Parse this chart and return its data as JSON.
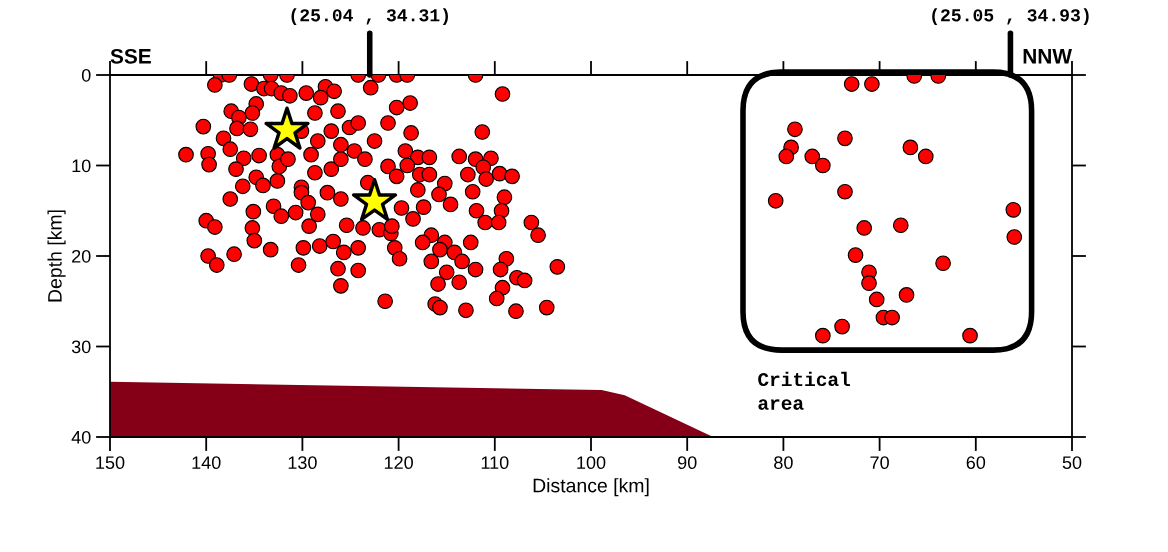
{
  "chart_data": {
    "type": "scatter",
    "xlabel": "Distance [km]",
    "ylabel": "Depth [km]",
    "xlim": [
      150,
      50
    ],
    "xticks": [
      150,
      140,
      130,
      120,
      110,
      100,
      90,
      80,
      70,
      60,
      50
    ],
    "ylim": [
      40,
      0
    ],
    "yticks": [
      0,
      10,
      20,
      30,
      40
    ],
    "grid": false,
    "tick_labels": "xy",
    "annotations": [
      "(25.04 , 34.31)",
      "(25.05 , 34.93)",
      "SSE",
      "NNW",
      "Critical area"
    ],
    "series": [
      {
        "type": "area",
        "color": "#850016",
        "x": [
          150,
          150,
          98.9,
          96.5,
          87.3
        ],
        "values": [
          40,
          33.9,
          34.8,
          35.4,
          40
        ]
      },
      {
        "color": "#ff0000",
        "marker": "circle",
        "x": [
          138.5,
          137.6,
          139.1,
          135.3,
          133.3,
          131.6,
          134.0,
          133.2,
          132.2,
          131.3,
          129.6,
          127.6,
          126.7,
          128.1,
          124.2,
          122.1,
          120.2,
          119.1,
          122.9,
          112.0,
          109.2,
          118.8,
          120.2,
          121.1,
          118.7,
          111.3,
          140.3,
          137.4,
          134.8,
          135.2,
          136.6,
          136.8,
          135.4,
          138.2,
          142.1,
          139.8,
          139.7,
          137.5,
          136.1,
          136.9,
          134.5,
          132.6,
          132.4,
          134.8,
          136.2,
          134.1,
          132.6,
          137.5,
          133.0,
          132.2,
          135.1,
          140.0,
          139.1,
          135.2,
          135.0,
          133.3,
          139.8,
          138.9,
          137.1,
          130.4,
          129.9,
          128.2,
          126.8,
          125.7,
          124.2,
          126.3,
          124.2,
          126.0,
          121.4,
          120.4,
          119.9,
          129.3,
          128.4,
          130.7,
          125.4,
          123.7,
          122.0,
          120.8,
          130.1,
          128.7,
          127.0,
          126.0,
          128.4,
          127.0,
          125.1,
          124.2,
          126.3,
          128.7,
          130.1,
          129.1,
          124.6,
          123.5,
          122.5,
          121.1,
          120.2,
          119.3,
          118.0,
          116.8,
          119.1,
          117.8,
          116.8,
          118.0,
          115.2,
          115.8,
          114.6,
          117.4,
          113.7,
          112.0,
          112.8,
          110.4,
          111.2,
          110.9,
          109.5,
          108.2,
          112.3,
          109.0,
          109.3,
          111.9,
          111.0,
          109.6,
          106.2,
          105.5,
          112.5,
          116.6,
          115.2,
          117.5,
          115.7,
          116.6,
          114.2,
          113.4,
          112.0,
          115.0,
          113.7,
          115.9,
          108.8,
          109.4,
          109.2,
          107.7,
          106.9,
          109.8,
          116.2,
          115.7,
          113.0,
          107.8,
          104.6,
          118.5,
          119.7,
          120.7,
          127.4,
          126.0,
          130.1,
          131.5,
          126.0,
          123.2,
          129.4,
          103.5,
          72.9,
          70.8,
          66.4,
          63.9,
          78.8,
          79.2,
          79.7,
          77.0,
          75.9,
          73.6,
          66.8,
          65.2,
          73.6,
          80.8,
          56.1,
          56.0,
          71.6,
          67.8,
          72.5,
          63.4,
          71.1,
          71.1,
          70.3,
          67.2,
          69.6,
          68.7,
          73.9,
          75.9,
          60.6
        ],
        "values": [
          0.0,
          0.0,
          1.1,
          1.0,
          0.0,
          0.0,
          1.5,
          1.5,
          2.0,
          2.3,
          2.0,
          1.3,
          1.8,
          2.5,
          0.0,
          0.0,
          0.0,
          0.0,
          1.4,
          0.0,
          2.1,
          3.1,
          3.6,
          5.3,
          6.4,
          6.3,
          5.7,
          4.0,
          3.2,
          4.2,
          4.7,
          5.9,
          6.0,
          7.0,
          8.8,
          8.7,
          9.9,
          8.2,
          9.2,
          10.4,
          8.9,
          8.8,
          10.1,
          11.3,
          12.3,
          12.2,
          11.7,
          13.7,
          14.5,
          15.6,
          15.1,
          16.1,
          16.8,
          16.9,
          18.3,
          19.3,
          20.0,
          21.0,
          19.8,
          21.0,
          19.1,
          18.9,
          18.4,
          19.6,
          19.1,
          21.4,
          21.6,
          23.3,
          25.0,
          19.1,
          20.3,
          16.7,
          15.4,
          15.2,
          16.6,
          16.9,
          17.1,
          17.5,
          12.4,
          10.8,
          10.4,
          7.7,
          7.3,
          6.2,
          5.8,
          5.3,
          4.0,
          4.2,
          6.2,
          8.8,
          8.4,
          9.3,
          7.3,
          10.1,
          11.2,
          8.4,
          9.1,
          9.1,
          10.0,
          11.0,
          11.0,
          12.7,
          12.0,
          13.2,
          14.3,
          14.6,
          9.0,
          9.3,
          11.0,
          9.2,
          10.2,
          11.5,
          10.9,
          11.2,
          12.9,
          13.5,
          15.0,
          15.0,
          16.3,
          16.3,
          16.3,
          17.7,
          18.5,
          17.7,
          18.5,
          18.5,
          19.3,
          20.6,
          19.6,
          20.6,
          21.5,
          21.8,
          22.9,
          23.1,
          20.3,
          21.5,
          23.5,
          22.4,
          22.7,
          24.7,
          25.3,
          25.7,
          26.0,
          26.1,
          25.7,
          15.9,
          14.7,
          16.7,
          13.0,
          13.7,
          13.0,
          9.3,
          9.3,
          11.9,
          14.1,
          21.2,
          1.0,
          1.0,
          0.1,
          0.1,
          6.0,
          8.0,
          9.0,
          9.0,
          10.0,
          7.0,
          8.0,
          9.0,
          12.9,
          13.9,
          14.9,
          17.9,
          16.9,
          16.6,
          19.9,
          20.8,
          21.8,
          23.0,
          24.8,
          24.3,
          26.8,
          26.8,
          27.8,
          28.8,
          28.8
        ]
      },
      {
        "color": "#ffff00",
        "marker": "star",
        "x": [
          131.6,
          122.5
        ],
        "values": [
          6.1,
          14.0
        ]
      }
    ]
  }
}
